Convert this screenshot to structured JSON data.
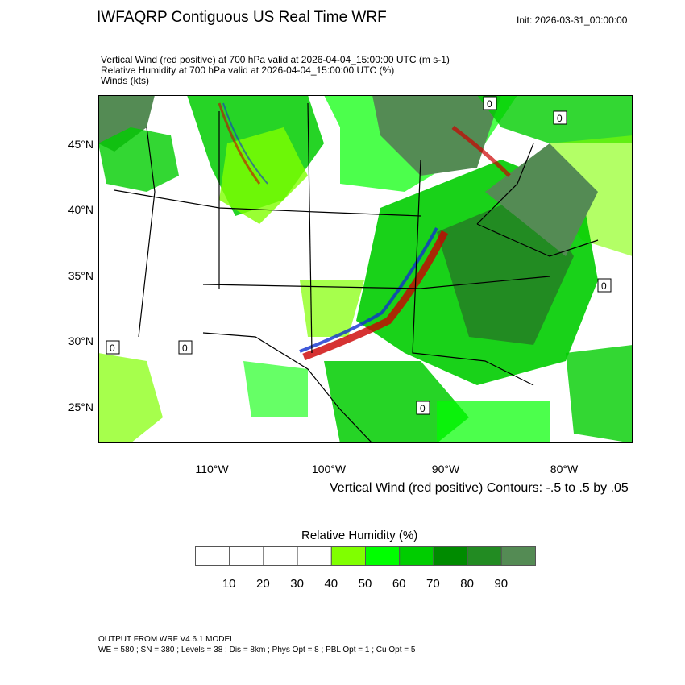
{
  "header": {
    "title": "IWFAQRP Contiguous US Real Time WRF",
    "init": "Init: 2026-03-31_00:00:00",
    "subtitles": [
      "Vertical Wind (red positive) at 700 hPa valid at 2026-04-04_15:00:00 UTC   (m s-1)",
      "Relative Humidity at 700 hPa valid at 2026-04-04_15:00:00 UTC   (%)",
      "Winds   (kts)"
    ]
  },
  "map": {
    "lat_labels": [
      "45°N",
      "40°N",
      "35°N",
      "30°N",
      "25°N"
    ],
    "lon_labels": [
      "110°W",
      "100°W",
      "90°W",
      "80°W"
    ],
    "contour_label": "0",
    "contour_info": "Vertical Wind (red positive) Contours: -.5 to .5 by .05",
    "colors": {
      "upward": "#cc0000",
      "downward": "#1030d0"
    }
  },
  "colorbar": {
    "title": "Relative Humidity  (%)",
    "labels": [
      "10",
      "20",
      "30",
      "40",
      "50",
      "60",
      "70",
      "80",
      "90"
    ],
    "colors": [
      "#ffffff",
      "#ffffff",
      "#ffffff",
      "#ffffff",
      "#80ff00",
      "#00ff00",
      "#00cd00",
      "#008b00",
      "#228b22",
      "#548b54"
    ]
  },
  "footer": {
    "line1": "OUTPUT FROM WRF V4.6.1 MODEL",
    "line2": "WE = 580 ; SN = 380 ; Levels = 38 ; Dis = 8km ; Phys Opt = 8 ; PBL Opt = 1 ; Cu Opt = 5"
  }
}
